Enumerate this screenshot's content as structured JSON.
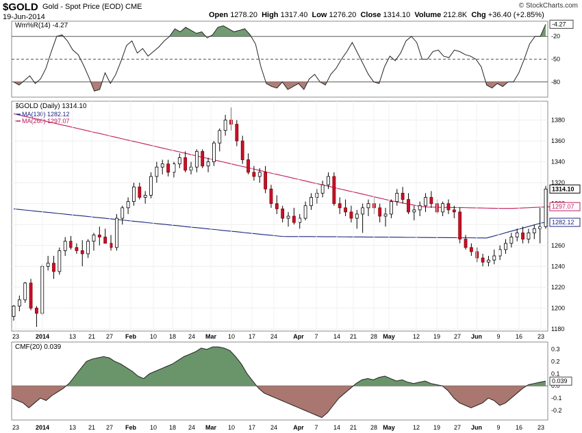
{
  "header": {
    "symbol": "$GOLD",
    "description": "Gold - Spot Price (EOD)",
    "exchange": "CME",
    "date": "19-Jun-2014",
    "brand": "© StockCharts.com",
    "quote": {
      "open_label": "Open",
      "open": "1278.20",
      "high_label": "High",
      "high": "1317.40",
      "low_label": "Low",
      "low": "1276.20",
      "close_label": "Close",
      "close": "1314.10",
      "volume_label": "Volume",
      "volume": "212.8K",
      "chg_label": "Chg",
      "chg": "+36.40 (+2.85%)"
    }
  },
  "chart_data": [
    {
      "type": "line",
      "panel": "williams-r",
      "title": "Wm%R(14) -4.27",
      "ylim": [
        -100,
        0
      ],
      "yticks": [
        "-20",
        "-50",
        "-80"
      ],
      "last_value": "-4.27",
      "overbought": -20,
      "oversold": -80,
      "series": [
        {
          "values": [
            -80,
            -84,
            -78,
            -72,
            -82,
            -76,
            -62,
            -40,
            -20,
            -18,
            -26,
            -38,
            -44,
            -58,
            -74,
            -92,
            -90,
            -68,
            -82,
            -70,
            -52,
            -32,
            -26,
            -42,
            -36,
            -46,
            -40,
            -34,
            -26,
            -20,
            -10,
            -14,
            -8,
            -12,
            -16,
            -14,
            -22,
            -18,
            -8,
            -6,
            -10,
            -14,
            -12,
            -10,
            -18,
            -30,
            -60,
            -82,
            -86,
            -88,
            -80,
            -90,
            -86,
            -82,
            -90,
            -76,
            -70,
            -80,
            -84,
            -70,
            -62,
            -50,
            -40,
            -28,
            -42,
            -56,
            -70,
            -80,
            -82,
            -60,
            -46,
            -52,
            -42,
            -26,
            -20,
            -28,
            -50,
            -50,
            -40,
            -38,
            -46,
            -48,
            -38,
            -40,
            -44,
            -46,
            -50,
            -60,
            -84,
            -88,
            -82,
            -86,
            -80,
            -80,
            -68,
            -50,
            -30,
            -20,
            -20,
            -4
          ]
        }
      ]
    },
    {
      "type": "candlestick",
      "panel": "price",
      "title": "$GOLD (Daily) 1314.10",
      "ylim": [
        1178,
        1398
      ],
      "yticks": [
        1180,
        1200,
        1220,
        1240,
        1260,
        1280,
        1300,
        1320,
        1340,
        1360,
        1380
      ],
      "x_labels": [
        "23",
        "2014",
        "13",
        "21",
        "27",
        "Feb",
        "10",
        "18",
        "24",
        "Mar",
        "10",
        "17",
        "24",
        "Apr",
        "7",
        "14",
        "21",
        "28",
        "May",
        "12",
        "19",
        "27",
        "Jun",
        "9",
        "16",
        "23"
      ],
      "candles": [
        [
          1192,
          1203,
          1188,
          1202
        ],
        [
          1202,
          1212,
          1197,
          1208
        ],
        [
          1208,
          1225,
          1205,
          1224
        ],
        [
          1224,
          1228,
          1198,
          1200
        ],
        [
          1200,
          1202,
          1182,
          1195
        ],
        [
          1195,
          1242,
          1193,
          1240
        ],
        [
          1240,
          1250,
          1236,
          1243
        ],
        [
          1243,
          1250,
          1228,
          1235
        ],
        [
          1235,
          1258,
          1232,
          1255
        ],
        [
          1255,
          1268,
          1250,
          1264
        ],
        [
          1264,
          1269,
          1256,
          1258
        ],
        [
          1258,
          1262,
          1252,
          1255
        ],
        [
          1255,
          1265,
          1240,
          1252
        ],
        [
          1252,
          1266,
          1248,
          1264
        ],
        [
          1264,
          1272,
          1255,
          1270
        ],
        [
          1270,
          1278,
          1260,
          1268
        ],
        [
          1268,
          1276,
          1262,
          1262
        ],
        [
          1262,
          1270,
          1255,
          1258
        ],
        [
          1258,
          1290,
          1255,
          1286
        ],
        [
          1286,
          1298,
          1280,
          1296
        ],
        [
          1296,
          1306,
          1290,
          1302
        ],
        [
          1302,
          1320,
          1298,
          1316
        ],
        [
          1316,
          1320,
          1304,
          1306
        ],
        [
          1306,
          1312,
          1300,
          1308
        ],
        [
          1308,
          1330,
          1305,
          1326
        ],
        [
          1326,
          1340,
          1320,
          1335
        ],
        [
          1335,
          1342,
          1328,
          1338
        ],
        [
          1338,
          1342,
          1326,
          1330
        ],
        [
          1330,
          1340,
          1325,
          1338
        ],
        [
          1338,
          1348,
          1334,
          1344
        ],
        [
          1344,
          1350,
          1330,
          1332
        ],
        [
          1332,
          1340,
          1328,
          1335
        ],
        [
          1335,
          1352,
          1330,
          1350
        ],
        [
          1350,
          1352,
          1334,
          1336
        ],
        [
          1336,
          1344,
          1330,
          1340
        ],
        [
          1340,
          1360,
          1336,
          1358
        ],
        [
          1358,
          1372,
          1350,
          1370
        ],
        [
          1370,
          1385,
          1365,
          1380
        ],
        [
          1380,
          1392,
          1370,
          1376
        ],
        [
          1376,
          1380,
          1355,
          1360
        ],
        [
          1360,
          1365,
          1338,
          1342
        ],
        [
          1342,
          1348,
          1328,
          1330
        ],
        [
          1330,
          1336,
          1322,
          1326
        ],
        [
          1326,
          1334,
          1320,
          1330
        ],
        [
          1330,
          1336,
          1310,
          1314
        ],
        [
          1314,
          1318,
          1296,
          1300
        ],
        [
          1300,
          1308,
          1290,
          1295
        ],
        [
          1295,
          1298,
          1282,
          1286
        ],
        [
          1286,
          1292,
          1278,
          1288
        ],
        [
          1288,
          1296,
          1280,
          1282
        ],
        [
          1282,
          1290,
          1276,
          1286
        ],
        [
          1286,
          1302,
          1284,
          1298
        ],
        [
          1298,
          1310,
          1294,
          1306
        ],
        [
          1306,
          1314,
          1300,
          1310
        ],
        [
          1310,
          1322,
          1306,
          1318
        ],
        [
          1318,
          1330,
          1314,
          1326
        ],
        [
          1326,
          1330,
          1298,
          1300
        ],
        [
          1300,
          1306,
          1290,
          1296
        ],
        [
          1296,
          1304,
          1288,
          1292
        ],
        [
          1292,
          1298,
          1282,
          1286
        ],
        [
          1286,
          1294,
          1276,
          1290
        ],
        [
          1290,
          1300,
          1272,
          1296
        ],
        [
          1296,
          1304,
          1288,
          1300
        ],
        [
          1300,
          1306,
          1290,
          1296
        ],
        [
          1296,
          1300,
          1282,
          1288
        ],
        [
          1288,
          1296,
          1278,
          1290
        ],
        [
          1290,
          1304,
          1286,
          1302
        ],
        [
          1302,
          1314,
          1298,
          1310
        ],
        [
          1310,
          1316,
          1300,
          1304
        ],
        [
          1304,
          1310,
          1290,
          1292
        ],
        [
          1292,
          1298,
          1284,
          1294
        ],
        [
          1294,
          1302,
          1288,
          1298
        ],
        [
          1298,
          1310,
          1292,
          1306
        ],
        [
          1306,
          1312,
          1296,
          1300
        ],
        [
          1300,
          1304,
          1290,
          1292
        ],
        [
          1292,
          1302,
          1288,
          1300
        ],
        [
          1300,
          1304,
          1290,
          1294
        ],
        [
          1294,
          1298,
          1286,
          1292
        ],
        [
          1292,
          1296,
          1262,
          1266
        ],
        [
          1266,
          1270,
          1256,
          1258
        ],
        [
          1258,
          1262,
          1250,
          1254
        ],
        [
          1254,
          1258,
          1244,
          1248
        ],
        [
          1248,
          1252,
          1240,
          1244
        ],
        [
          1244,
          1250,
          1240,
          1246
        ],
        [
          1246,
          1256,
          1242,
          1250
        ],
        [
          1250,
          1260,
          1246,
          1256
        ],
        [
          1256,
          1266,
          1252,
          1262
        ],
        [
          1262,
          1272,
          1258,
          1268
        ],
        [
          1268,
          1276,
          1264,
          1272
        ],
        [
          1272,
          1278,
          1262,
          1266
        ],
        [
          1266,
          1276,
          1262,
          1272
        ],
        [
          1272,
          1280,
          1266,
          1276
        ],
        [
          1276,
          1296,
          1262,
          1278
        ],
        [
          1278,
          1317,
          1276,
          1314
        ]
      ],
      "series": [
        {
          "name": "MA(130) 1282.12",
          "color": "#1a237e",
          "values": [
            1295,
            1294.4,
            1293.9,
            1293.4,
            1292.8,
            1292.3,
            1291.8,
            1291.3,
            1290.7,
            1290.2,
            1289.7,
            1289.1,
            1288.6,
            1288.1,
            1287.6,
            1287.0,
            1286.5,
            1286.0,
            1285.4,
            1284.9,
            1284.4,
            1283.9,
            1283.3,
            1282.8,
            1282.3,
            1281.7,
            1281.2,
            1280.7,
            1280.2,
            1279.6,
            1279.1,
            1278.6,
            1278.0,
            1277.5,
            1277.0,
            1276.5,
            1275.9,
            1275.4,
            1274.9,
            1274.3,
            1273.8,
            1273.3,
            1272.8,
            1272.2,
            1271.7,
            1271.2,
            1270.6,
            1270.1,
            1269.6,
            1269.1,
            1268.6,
            1268.5,
            1268.5,
            1268.5,
            1268.5,
            1268.5,
            1268.4,
            1268.4,
            1268.3,
            1268.3,
            1268.3,
            1268.2,
            1268.2,
            1268.1,
            1268.1,
            1268.1,
            1268.0,
            1268.0,
            1267.9,
            1267.9,
            1267.9,
            1267.8,
            1267.8,
            1267.7,
            1267.7,
            1267.7,
            1267.6,
            1267.6,
            1267.5,
            1267.5,
            1267.5,
            1267.4,
            1267.4,
            1267.3,
            1267.3,
            1267.3,
            1267.2,
            1267.2,
            1267.1,
            1268.5,
            1269.9,
            1271.3,
            1272.8,
            1274.2,
            1275.6,
            1277.0,
            1278.4,
            1279.8,
            1281.3,
            1282.1
          ]
        },
        {
          "name": "MA(260) 1297.07",
          "color": "#c2185b",
          "values": [
            1386,
            1384.8,
            1383.6,
            1382.5,
            1381.3,
            1380.1,
            1378.9,
            1377.7,
            1376.5,
            1375.3,
            1374.2,
            1373.0,
            1371.8,
            1370.6,
            1369.4,
            1368.2,
            1367.1,
            1365.9,
            1364.7,
            1363.5,
            1362.3,
            1361.1,
            1359.9,
            1358.8,
            1357.6,
            1356.4,
            1355.2,
            1354.0,
            1352.8,
            1351.6,
            1350.5,
            1349.3,
            1348.1,
            1346.9,
            1345.7,
            1344.5,
            1343.4,
            1342.2,
            1341.0,
            1339.8,
            1338.6,
            1337.4,
            1336.2,
            1335.1,
            1333.9,
            1332.7,
            1331.5,
            1330.3,
            1329.1,
            1327.9,
            1326.8,
            1325.6,
            1324.4,
            1323.2,
            1322.0,
            1320.8,
            1319.6,
            1318.5,
            1317.3,
            1316.1,
            1314.9,
            1313.7,
            1312.5,
            1311.4,
            1310.2,
            1309.0,
            1307.8,
            1306.6,
            1305.4,
            1304.2,
            1303.0,
            1302.0,
            1301.0,
            1300.0,
            1299.0,
            1298.0,
            1297.1,
            1296.7,
            1296.6,
            1296.5,
            1296.4,
            1296.3,
            1296.2,
            1296.2,
            1296.1,
            1296.0,
            1295.9,
            1295.8,
            1295.7,
            1295.6,
            1295.5,
            1295.4,
            1295.4,
            1295.5,
            1295.7,
            1295.9,
            1296.1,
            1296.4,
            1296.6,
            1296.8,
            1297.1
          ]
        }
      ],
      "last_labels": {
        "close": "1314.10",
        "ma260": "1297.07",
        "ma130": "1282.12"
      }
    },
    {
      "type": "area",
      "panel": "cmf",
      "title": "CMF(20) 0.039",
      "ylim": [
        -0.28,
        0.36
      ],
      "yticks": [
        "0.3",
        "0.2",
        "0.1",
        "0.0",
        "-0.1",
        "-0.2"
      ],
      "last_value": "0.039",
      "series": [
        {
          "values": [
            -0.1,
            -0.12,
            -0.14,
            -0.18,
            -0.14,
            -0.1,
            -0.12,
            -0.08,
            -0.05,
            -0.02,
            0.02,
            0.08,
            0.14,
            0.2,
            0.22,
            0.23,
            0.24,
            0.23,
            0.2,
            0.18,
            0.15,
            0.12,
            0.08,
            0.06,
            0.1,
            0.12,
            0.14,
            0.16,
            0.18,
            0.21,
            0.24,
            0.26,
            0.28,
            0.31,
            0.3,
            0.32,
            0.32,
            0.31,
            0.29,
            0.24,
            0.18,
            0.1,
            0.04,
            -0.02,
            -0.06,
            -0.08,
            -0.1,
            -0.12,
            -0.14,
            -0.16,
            -0.18,
            -0.2,
            -0.22,
            -0.24,
            -0.26,
            -0.22,
            -0.16,
            -0.1,
            -0.06,
            -0.02,
            0.02,
            0.05,
            0.06,
            0.05,
            0.07,
            0.08,
            0.06,
            0.04,
            0.05,
            0.03,
            0.02,
            0.03,
            0.04,
            0.02,
            0.01,
            0.0,
            -0.04,
            -0.1,
            -0.14,
            -0.16,
            -0.18,
            -0.16,
            -0.14,
            -0.1,
            -0.12,
            -0.16,
            -0.14,
            -0.1,
            -0.06,
            -0.02,
            0.01,
            0.02,
            0.03,
            0.039
          ]
        }
      ]
    }
  ]
}
